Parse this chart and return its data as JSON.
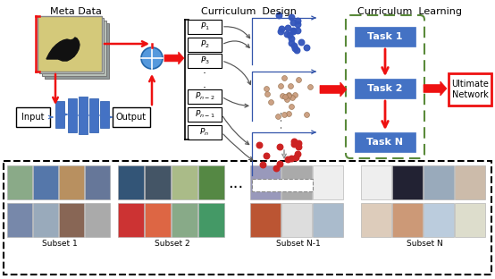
{
  "bg_color": "#ffffff",
  "meta_data_label": "Meta Data",
  "curriculum_design_label": "Curriculum  Design",
  "curriculum_learning_label": "Curriculum  Learning",
  "input_label": "Input",
  "output_label": "Output",
  "p_labels": [
    "$P_1$",
    "$P_2$",
    "$P_3$",
    "$P_{n-2}$",
    "$P_{n-1}$",
    "$P_n$"
  ],
  "task_labels": [
    "Task 1",
    "Task 2",
    "Task N"
  ],
  "ultimate_label": "Ultimate\nNetwork",
  "subset_labels": [
    "Subset 1",
    "Subset 2",
    "Subset N-1",
    "Subset N"
  ],
  "blue_color": "#4472C4",
  "red_color": "#EE1111",
  "green_dash_color": "#5a8a3a",
  "scatter_blue": "#3355BB",
  "scatter_tan": "#C89878",
  "scatter_red": "#CC2222",
  "nn_bar_color": "#4472C4",
  "image_card_main": "#d4c97a",
  "image_card_back1": "#b0b8b0",
  "image_card_back2": "#909890",
  "nn_connector_color": "#4472C4"
}
